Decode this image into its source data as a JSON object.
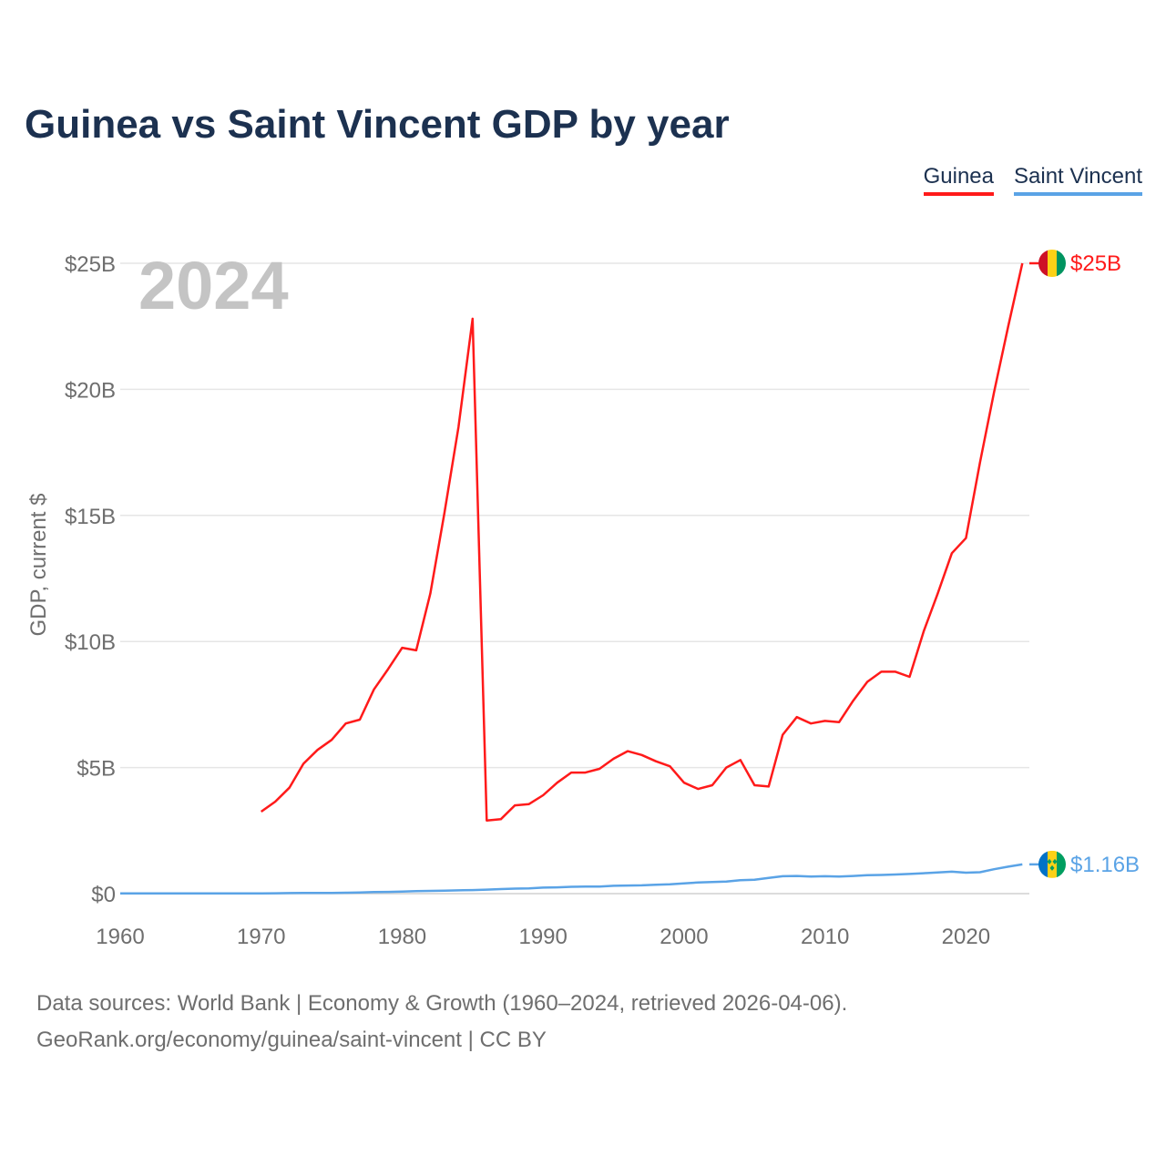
{
  "chart_data": {
    "type": "line",
    "title": "Guinea vs Saint Vincent GDP by year",
    "ylabel": "GDP, current $",
    "xlabel": "",
    "year_label": "2024",
    "xlim": [
      1960,
      2024.5
    ],
    "ylim": [
      0,
      25
    ],
    "x_ticks": [
      1960,
      1970,
      1980,
      1990,
      2000,
      2010,
      2020
    ],
    "y_ticks": [
      {
        "value": 0,
        "label": "$0"
      },
      {
        "value": 5,
        "label": "$5B"
      },
      {
        "value": 10,
        "label": "$10B"
      },
      {
        "value": 15,
        "label": "$15B"
      },
      {
        "value": 20,
        "label": "$20B"
      },
      {
        "value": 25,
        "label": "$25B"
      }
    ],
    "grid": true,
    "legend_position": "top-right",
    "series": [
      {
        "name": "Guinea",
        "color": "#ff1a1a",
        "end_label": "$25B",
        "x": [
          1970,
          1971,
          1972,
          1973,
          1974,
          1975,
          1976,
          1977,
          1978,
          1979,
          1980,
          1981,
          1982,
          1983,
          1984,
          1985,
          1986,
          1987,
          1988,
          1989,
          1990,
          1991,
          1992,
          1993,
          1994,
          1995,
          1996,
          1997,
          1998,
          1999,
          2000,
          2001,
          2002,
          2003,
          2004,
          2005,
          2006,
          2007,
          2008,
          2009,
          2010,
          2011,
          2012,
          2013,
          2014,
          2015,
          2016,
          2017,
          2018,
          2019,
          2020,
          2021,
          2022,
          2023,
          2024
        ],
        "values": [
          3.25,
          3.65,
          4.2,
          5.15,
          5.7,
          6.1,
          6.75,
          6.9,
          8.1,
          8.9,
          9.75,
          9.65,
          11.9,
          15.1,
          18.5,
          22.8,
          2.9,
          2.95,
          3.5,
          3.55,
          3.9,
          4.4,
          4.8,
          4.8,
          4.95,
          5.35,
          5.65,
          5.5,
          5.25,
          5.05,
          4.4,
          4.15,
          4.3,
          5.0,
          5.3,
          4.3,
          4.25,
          6.3,
          7.0,
          6.75,
          6.85,
          6.8,
          7.65,
          8.4,
          8.8,
          8.8,
          8.6,
          10.4,
          11.9,
          13.5,
          14.1,
          17.1,
          19.9,
          22.5,
          25.0
        ]
      },
      {
        "name": "Saint Vincent",
        "color": "#5aa3e6",
        "end_label": "$1.16B",
        "x": [
          1960,
          1961,
          1962,
          1963,
          1964,
          1965,
          1966,
          1967,
          1968,
          1969,
          1970,
          1971,
          1972,
          1973,
          1974,
          1975,
          1976,
          1977,
          1978,
          1979,
          1980,
          1981,
          1982,
          1983,
          1984,
          1985,
          1986,
          1987,
          1988,
          1989,
          1990,
          1991,
          1992,
          1993,
          1994,
          1995,
          1996,
          1997,
          1998,
          1999,
          2000,
          2001,
          2002,
          2003,
          2004,
          2005,
          2006,
          2007,
          2008,
          2009,
          2010,
          2011,
          2012,
          2013,
          2014,
          2015,
          2016,
          2017,
          2018,
          2019,
          2020,
          2021,
          2022,
          2023,
          2024
        ],
        "values": [
          0.01,
          0.01,
          0.01,
          0.01,
          0.01,
          0.01,
          0.01,
          0.01,
          0.01,
          0.01,
          0.01,
          0.015,
          0.02,
          0.025,
          0.03,
          0.03,
          0.035,
          0.045,
          0.06,
          0.07,
          0.08,
          0.1,
          0.11,
          0.12,
          0.13,
          0.14,
          0.16,
          0.18,
          0.2,
          0.21,
          0.24,
          0.25,
          0.27,
          0.28,
          0.28,
          0.31,
          0.32,
          0.33,
          0.35,
          0.37,
          0.41,
          0.44,
          0.46,
          0.48,
          0.53,
          0.55,
          0.62,
          0.69,
          0.7,
          0.68,
          0.69,
          0.68,
          0.7,
          0.73,
          0.74,
          0.76,
          0.78,
          0.81,
          0.84,
          0.87,
          0.83,
          0.85,
          0.97,
          1.07,
          1.16
        ]
      }
    ]
  },
  "footer": {
    "source_line1": "Data sources: World Bank | Economy & Growth (1960–2024, retrieved 2026-04-06).",
    "source_line2": "GeoRank.org/economy/guinea/saint-vincent | CC BY"
  },
  "flags": {
    "guinea": {
      "icon": "guinea-flag-icon",
      "colors": [
        "#ce1126",
        "#fcd116",
        "#009460"
      ]
    },
    "saint_vincent": {
      "icon": "saint-vincent-flag-icon",
      "colors": [
        "#0072c6",
        "#fcd116",
        "#009e60"
      ]
    }
  }
}
